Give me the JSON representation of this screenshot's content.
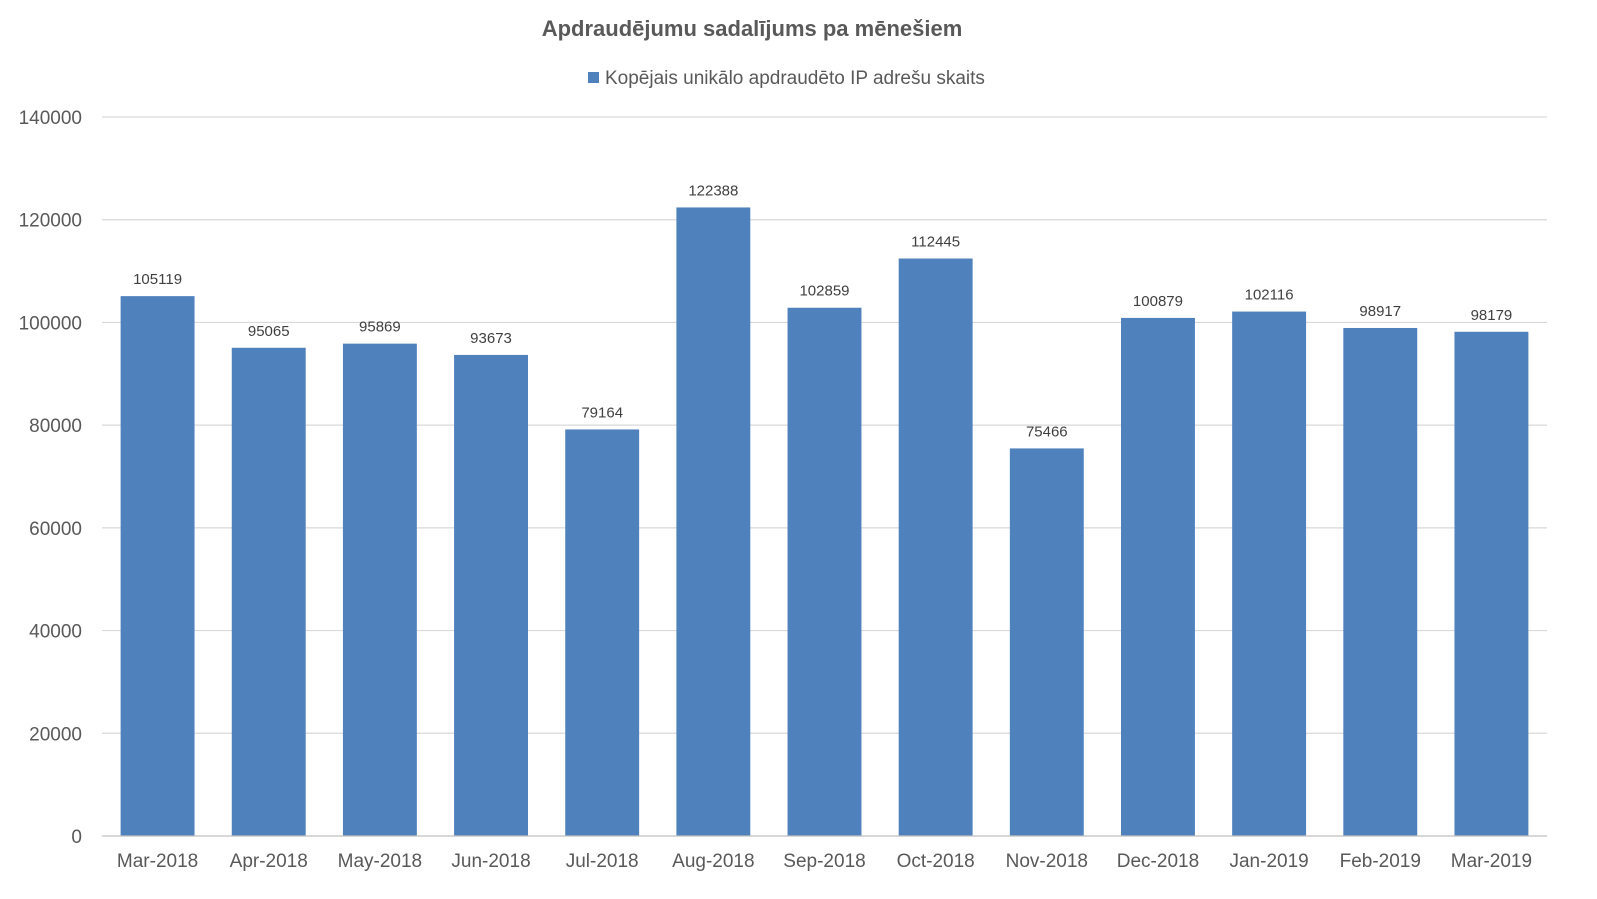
{
  "chart_data": {
    "type": "bar",
    "title": "Apdraudējumu sadalījums pa mēnešiem",
    "xlabel": "",
    "ylabel": "",
    "categories": [
      "Mar-2018",
      "Apr-2018",
      "May-2018",
      "Jun-2018",
      "Jul-2018",
      "Aug-2018",
      "Sep-2018",
      "Oct-2018",
      "Nov-2018",
      "Dec-2018",
      "Jan-2019",
      "Feb-2019",
      "Mar-2019"
    ],
    "series": [
      {
        "name": "Kopējais unikālo apdraudēto IP adrešu skaits",
        "color": "#4f81bd",
        "values": [
          105119,
          95065,
          95869,
          93673,
          79164,
          122388,
          102859,
          112445,
          75466,
          100879,
          102116,
          98917,
          98179
        ]
      }
    ],
    "ylim": [
      0,
      140000
    ],
    "yticks": [
      0,
      20000,
      40000,
      60000,
      80000,
      100000,
      120000,
      140000
    ],
    "grid": true,
    "legend_position": "top-center",
    "data_labels": true
  }
}
